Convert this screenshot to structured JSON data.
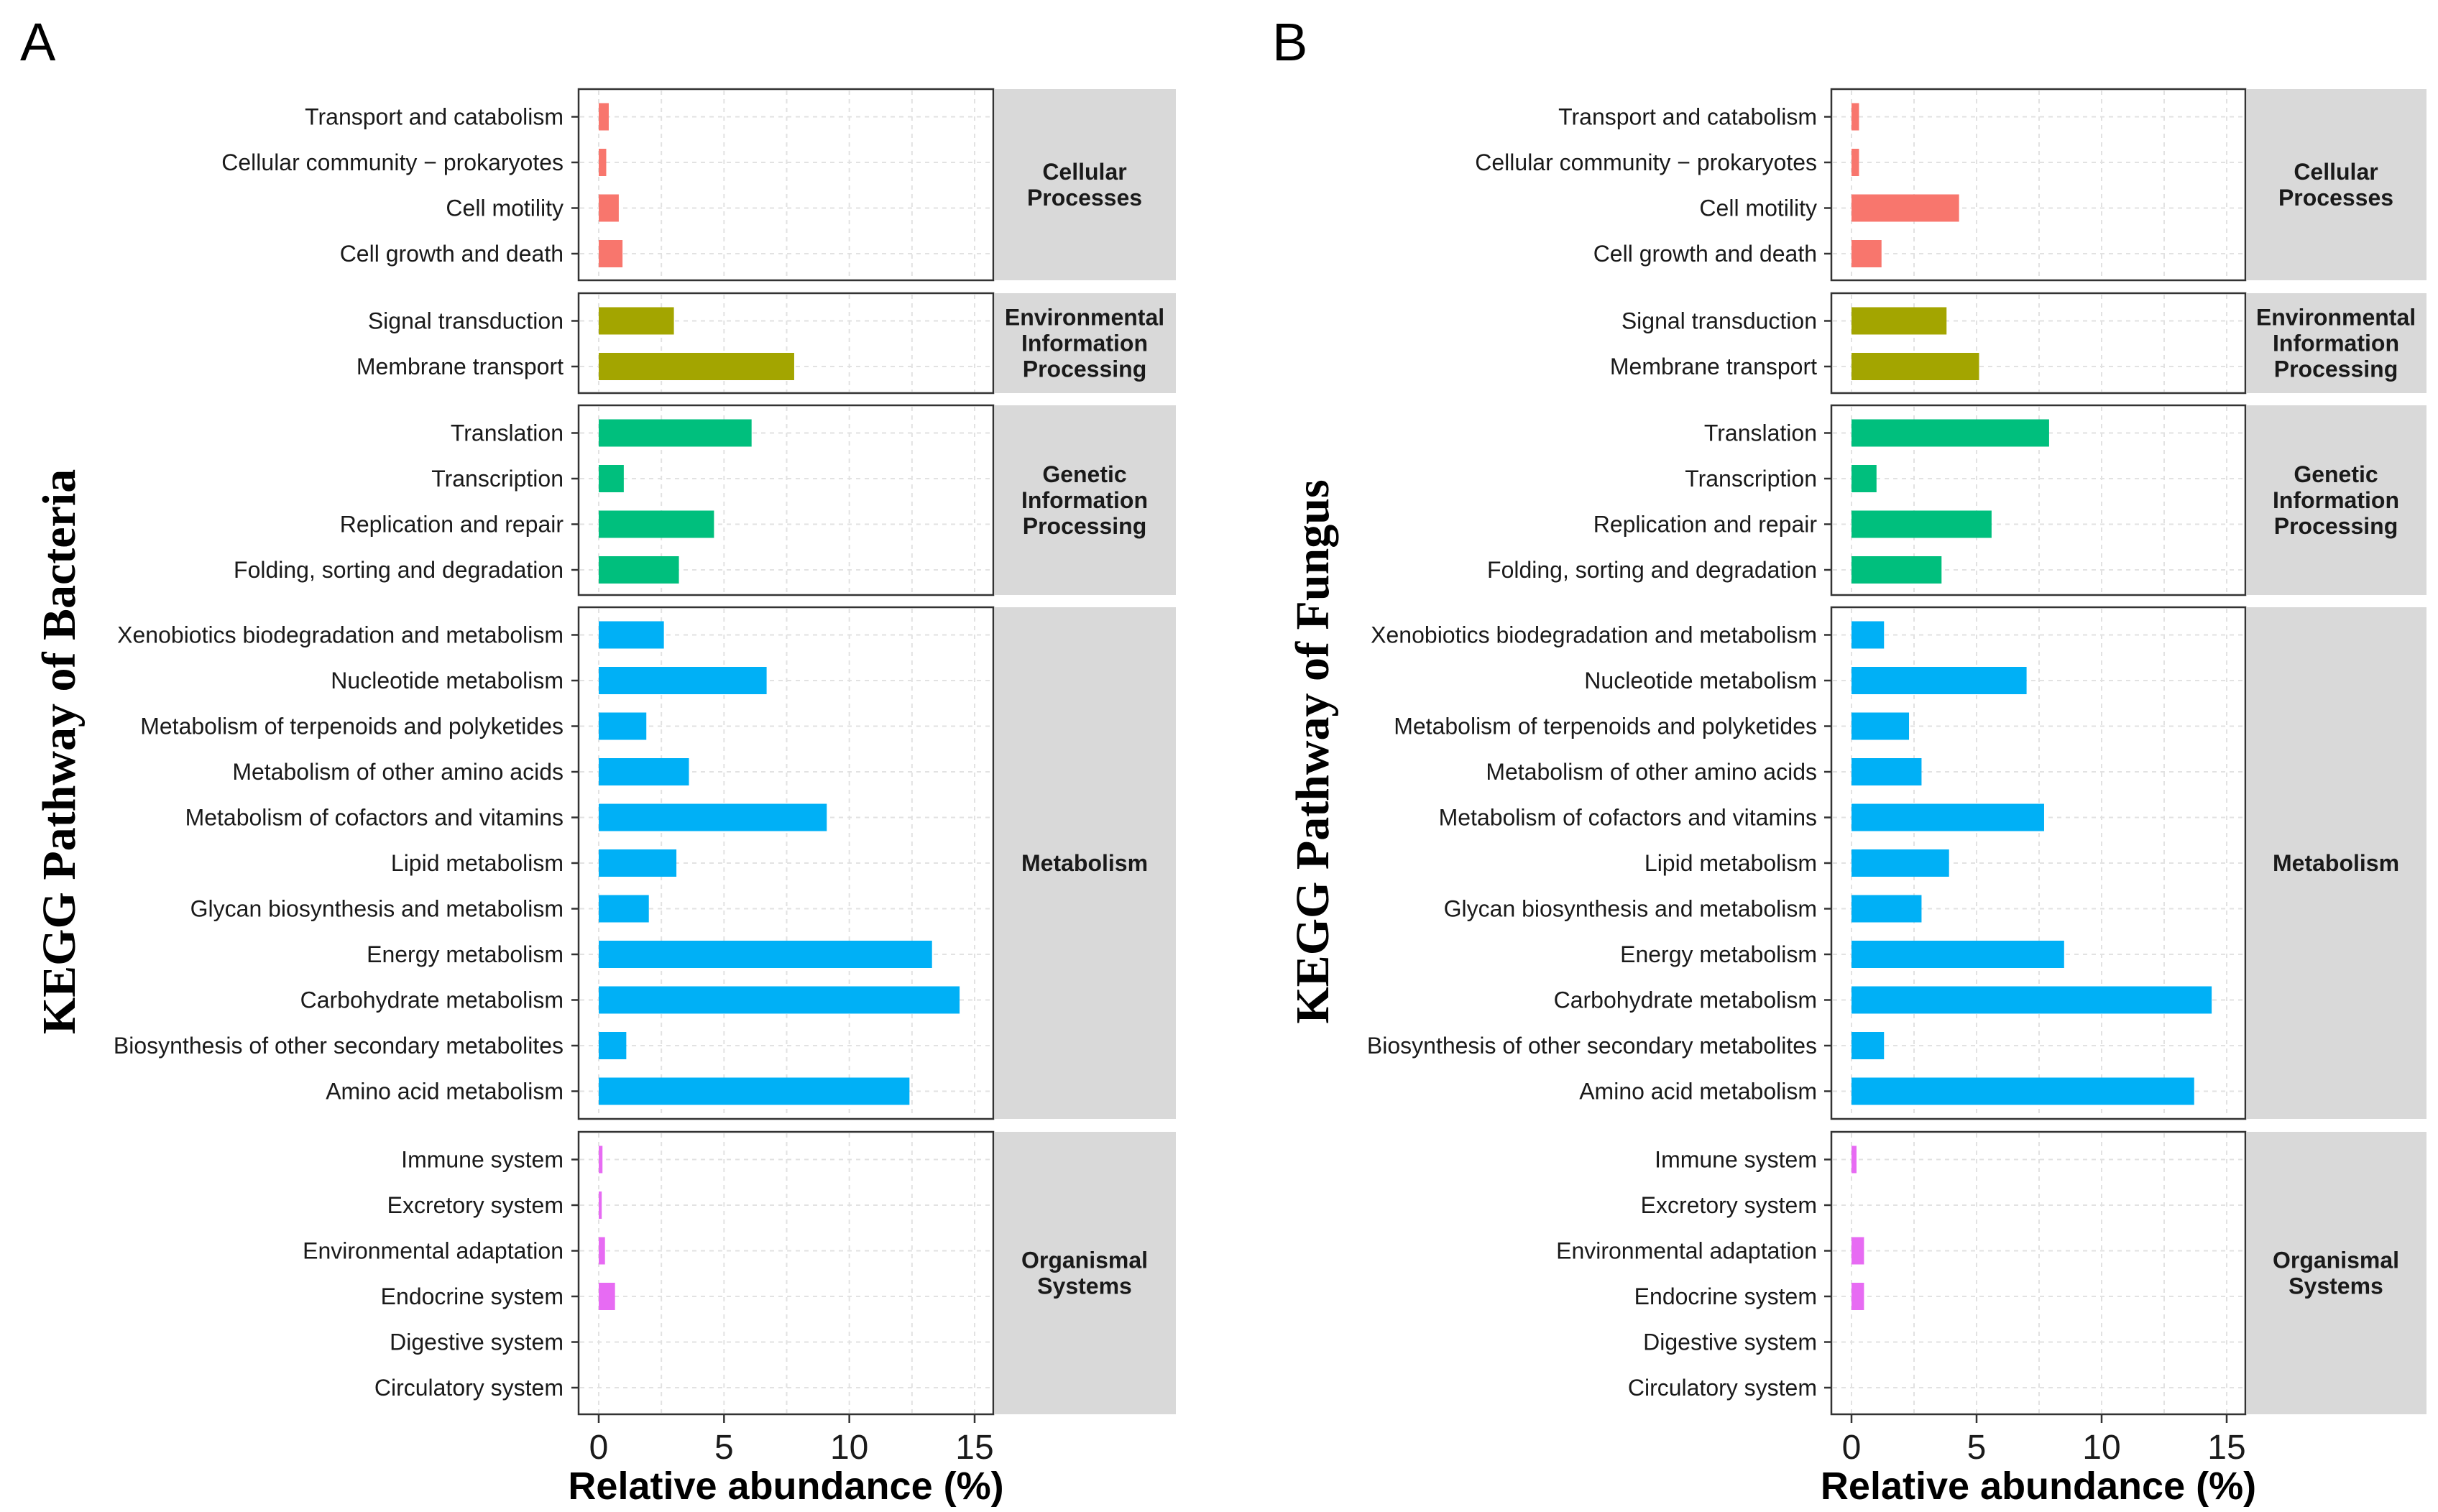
{
  "colors": {
    "Cellular Processes": "#f8766d",
    "Environmental Information Processing": "#a3a500",
    "Genetic Information Processing": "#00bf7d",
    "Metabolism": "#00b0f6",
    "Organismal Systems": "#e76bf3"
  },
  "chart_data": [
    {
      "type": "bar",
      "panel_label": "A",
      "ylabel": "KEGG Pathway of Bacteria",
      "xlabel": "Relative abundance (%)",
      "xlim": [
        0,
        15
      ],
      "xticks": [
        0,
        5,
        10,
        15
      ],
      "xtick_labels": [
        "0",
        "5",
        "10",
        "15"
      ],
      "facets": [
        {
          "name": "Cellular Processes",
          "strip_lines": [
            "Cellular",
            "Processes"
          ],
          "categories": [
            "Transport and catabolism",
            "Cellular community − prokaryotes",
            "Cell motility",
            "Cell growth and death"
          ],
          "values": [
            0.4,
            0.3,
            0.8,
            0.95
          ]
        },
        {
          "name": "Environmental Information Processing",
          "strip_lines": [
            "Environmental",
            "Information",
            "Processing"
          ],
          "categories": [
            "Signal transduction",
            "Membrane transport"
          ],
          "values": [
            3.0,
            7.8
          ]
        },
        {
          "name": "Genetic Information Processing",
          "strip_lines": [
            "Genetic",
            "Information",
            "Processing"
          ],
          "categories": [
            "Translation",
            "Transcription",
            "Replication and repair",
            "Folding, sorting and degradation"
          ],
          "values": [
            6.1,
            1.0,
            4.6,
            3.2
          ]
        },
        {
          "name": "Metabolism",
          "strip_lines": [
            "Metabolism"
          ],
          "categories": [
            "Xenobiotics biodegradation and metabolism",
            "Nucleotide metabolism",
            "Metabolism of terpenoids and polyketides",
            "Metabolism of other amino acids",
            "Metabolism of cofactors and vitamins",
            "Lipid metabolism",
            "Glycan biosynthesis and metabolism",
            "Energy metabolism",
            "Carbohydrate metabolism",
            "Biosynthesis of other secondary metabolites",
            "Amino acid metabolism"
          ],
          "values": [
            2.6,
            6.7,
            1.9,
            3.6,
            9.1,
            3.1,
            2.0,
            13.3,
            14.4,
            1.1,
            12.4
          ]
        },
        {
          "name": "Organismal Systems",
          "strip_lines": [
            "Organismal",
            "Systems"
          ],
          "categories": [
            "Immune system",
            "Excretory system",
            "Environmental adaptation",
            "Endocrine system",
            "Digestive system",
            "Circulatory system"
          ],
          "values": [
            0.15,
            0.12,
            0.25,
            0.65,
            0,
            0
          ]
        }
      ]
    },
    {
      "type": "bar",
      "panel_label": "B",
      "ylabel": "KEGG Pathway of Fungus",
      "xlabel": "Relative abundance (%)",
      "xlim": [
        0,
        15
      ],
      "xticks": [
        0,
        5,
        10,
        15
      ],
      "xtick_labels": [
        "0",
        "5",
        "10",
        "15"
      ],
      "facets": [
        {
          "name": "Cellular Processes",
          "strip_lines": [
            "Cellular",
            "Processes"
          ],
          "categories": [
            "Transport and catabolism",
            "Cellular community − prokaryotes",
            "Cell motility",
            "Cell growth and death"
          ],
          "values": [
            0.3,
            0.3,
            4.3,
            1.2
          ]
        },
        {
          "name": "Environmental Information Processing",
          "strip_lines": [
            "Environmental",
            "Information",
            "Processing"
          ],
          "categories": [
            "Signal transduction",
            "Membrane transport"
          ],
          "values": [
            3.8,
            5.1
          ]
        },
        {
          "name": "Genetic Information Processing",
          "strip_lines": [
            "Genetic",
            "Information",
            "Processing"
          ],
          "categories": [
            "Translation",
            "Transcription",
            "Replication and repair",
            "Folding, sorting and degradation"
          ],
          "values": [
            7.9,
            1.0,
            5.6,
            3.6
          ]
        },
        {
          "name": "Metabolism",
          "strip_lines": [
            "Metabolism"
          ],
          "categories": [
            "Xenobiotics biodegradation and metabolism",
            "Nucleotide metabolism",
            "Metabolism of terpenoids and polyketides",
            "Metabolism of other amino acids",
            "Metabolism of cofactors and vitamins",
            "Lipid metabolism",
            "Glycan biosynthesis and metabolism",
            "Energy metabolism",
            "Carbohydrate metabolism",
            "Biosynthesis of other secondary metabolites",
            "Amino acid metabolism"
          ],
          "values": [
            1.3,
            7.0,
            2.3,
            2.8,
            7.7,
            3.9,
            2.8,
            8.5,
            14.4,
            1.3,
            13.7
          ]
        },
        {
          "name": "Organismal Systems",
          "strip_lines": [
            "Organismal",
            "Systems"
          ],
          "categories": [
            "Immune system",
            "Excretory system",
            "Environmental adaptation",
            "Endocrine system",
            "Digestive system",
            "Circulatory system"
          ],
          "values": [
            0.2,
            0,
            0.5,
            0.5,
            0,
            0
          ]
        }
      ]
    }
  ]
}
